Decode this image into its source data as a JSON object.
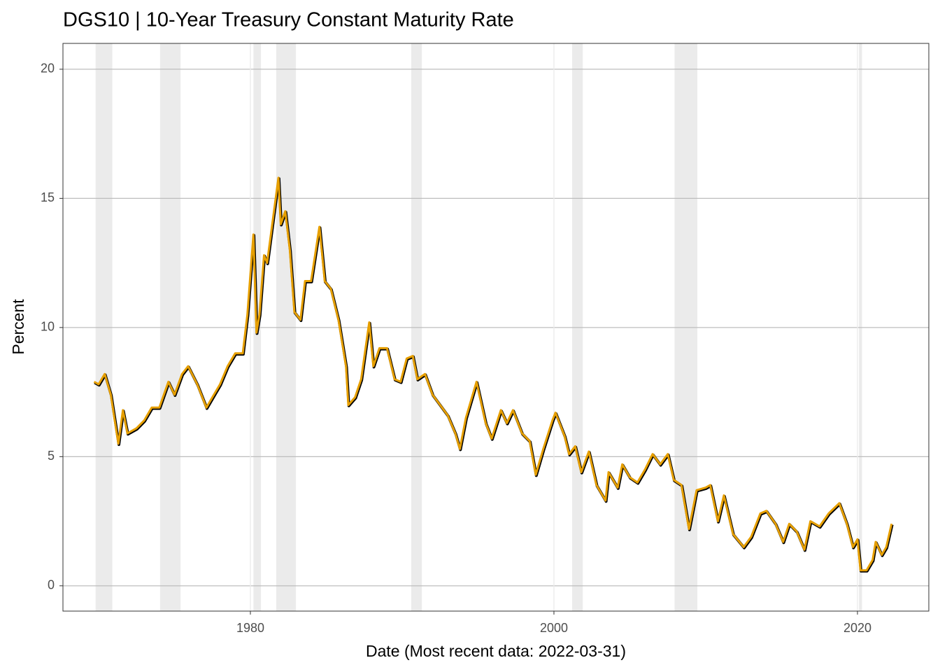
{
  "chart_data": {
    "type": "line",
    "title": "DGS10 | 10-Year Treasury Constant Maturity Rate",
    "x_label": "Date (Most recent data: 2022-03-31)",
    "y_label": "Percent",
    "x": [
      1969.7,
      1970.0,
      1970.4,
      1970.8,
      1971.3,
      1971.6,
      1971.9,
      1972.5,
      1973.0,
      1973.5,
      1974.0,
      1974.6,
      1975.0,
      1975.5,
      1975.9,
      1976.5,
      1977.1,
      1977.6,
      1978.0,
      1978.5,
      1979.0,
      1979.5,
      1979.8,
      1980.2,
      1980.4,
      1980.6,
      1980.9,
      1981.1,
      1981.85,
      1982.0,
      1982.3,
      1982.6,
      1982.9,
      1983.3,
      1983.6,
      1984.0,
      1984.55,
      1984.9,
      1985.3,
      1985.8,
      1986.3,
      1986.45,
      1986.9,
      1987.3,
      1987.83,
      1988.1,
      1988.5,
      1989.0,
      1989.5,
      1989.9,
      1990.3,
      1990.7,
      1991.0,
      1991.5,
      1992.0,
      1992.5,
      1993.0,
      1993.5,
      1993.8,
      1994.2,
      1994.9,
      1995.5,
      1995.9,
      1996.5,
      1996.9,
      1997.3,
      1997.9,
      1998.4,
      1998.8,
      1999.3,
      1999.9,
      2000.1,
      2000.7,
      2001.0,
      2001.4,
      2001.8,
      2002.3,
      2002.8,
      2003.4,
      2003.6,
      2004.2,
      2004.5,
      2005.0,
      2005.5,
      2006.0,
      2006.5,
      2007.0,
      2007.5,
      2007.9,
      2008.4,
      2008.9,
      2009.4,
      2010.0,
      2010.3,
      2010.8,
      2011.2,
      2011.8,
      2012.5,
      2013.0,
      2013.6,
      2014.0,
      2014.6,
      2015.1,
      2015.5,
      2016.0,
      2016.5,
      2016.9,
      2017.5,
      2018.1,
      2018.8,
      2019.3,
      2019.7,
      2020.0,
      2020.2,
      2020.6,
      2021.0,
      2021.2,
      2021.6,
      2021.9,
      2022.25
    ],
    "values": [
      7.9,
      7.8,
      8.2,
      7.4,
      5.5,
      6.8,
      5.9,
      6.1,
      6.4,
      6.9,
      6.9,
      7.9,
      7.4,
      8.2,
      8.5,
      7.8,
      6.9,
      7.4,
      7.8,
      8.5,
      9.0,
      9.0,
      10.5,
      13.6,
      9.8,
      10.5,
      12.8,
      12.5,
      15.8,
      14.0,
      14.5,
      13.0,
      10.6,
      10.3,
      11.8,
      11.8,
      13.9,
      11.8,
      11.5,
      10.3,
      8.5,
      7.0,
      7.3,
      8.0,
      10.2,
      8.5,
      9.2,
      9.2,
      8.0,
      7.9,
      8.8,
      8.9,
      8.0,
      8.2,
      7.4,
      7.0,
      6.6,
      5.9,
      5.3,
      6.5,
      7.9,
      6.3,
      5.7,
      6.8,
      6.3,
      6.8,
      5.9,
      5.6,
      4.3,
      5.3,
      6.4,
      6.7,
      5.8,
      5.1,
      5.4,
      4.4,
      5.2,
      3.9,
      3.3,
      4.4,
      3.8,
      4.7,
      4.2,
      4.0,
      4.5,
      5.1,
      4.7,
      5.1,
      4.1,
      3.9,
      2.2,
      3.7,
      3.8,
      3.9,
      2.5,
      3.5,
      2.0,
      1.5,
      1.9,
      2.8,
      2.9,
      2.4,
      1.7,
      2.4,
      2.1,
      1.4,
      2.5,
      2.3,
      2.8,
      3.2,
      2.4,
      1.5,
      1.8,
      0.6,
      0.6,
      1.0,
      1.7,
      1.2,
      1.5,
      2.4
    ],
    "color": "#e69f00",
    "outline_color": "#000000",
    "recessions": [
      [
        1969.8,
        1970.9
      ],
      [
        1974.05,
        1975.4
      ],
      [
        1980.2,
        1980.7
      ],
      [
        1981.7,
        1983.0
      ],
      [
        1990.6,
        1991.3
      ],
      [
        2001.2,
        2001.9
      ],
      [
        2007.95,
        2009.45
      ],
      [
        2020.1,
        2020.3
      ]
    ],
    "recession_color": "#ebebeb",
    "xlim": [
      1967.65,
      2024.7
    ],
    "ylim": [
      -0.98,
      21.0
    ],
    "xticks": [
      1980,
      2000,
      2020
    ],
    "yticks": [
      0,
      5,
      10,
      15,
      20
    ],
    "grid": true
  }
}
